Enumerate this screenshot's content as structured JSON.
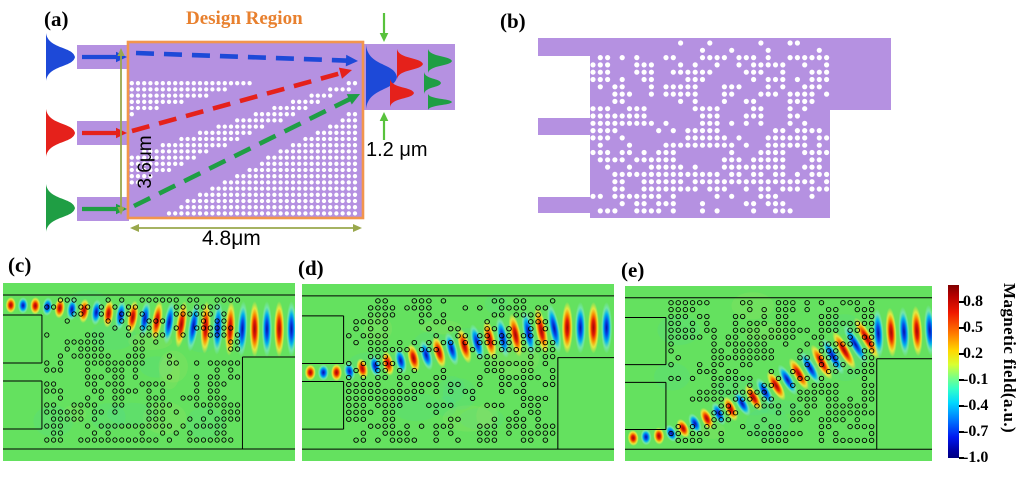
{
  "panels": {
    "a": {
      "label": "(a)",
      "design_region_label": "Design Region",
      "dim_height": "3.6μm",
      "dim_width": "4.8μm",
      "dim_output": "1.2 μm"
    },
    "b": {
      "label": "(b)"
    },
    "c": {
      "label": "(c)"
    },
    "d": {
      "label": "(d)"
    },
    "e": {
      "label": "(e)"
    }
  },
  "colorbar": {
    "title": "Magnetic field(a.u.)",
    "ticks": [
      "0.8",
      "0.5",
      "0.2",
      "-0.1",
      "-0.4",
      "-0.7",
      "-1.0"
    ],
    "range_top": 1.0,
    "range_bottom": -1.0,
    "colormap": "jet"
  },
  "chart_data": {
    "type": "heatmap",
    "colorbar": {
      "label": "Magnetic field(a.u.)",
      "ticks": [
        0.8,
        0.5,
        0.2,
        -0.1,
        -0.4,
        -0.7,
        -1.0
      ],
      "range": [
        -1.0,
        1.0
      ],
      "colormap": "jet"
    },
    "panels": [
      {
        "id": "c",
        "input_port": "top",
        "beam": "straight through top to wide output"
      },
      {
        "id": "d",
        "input_port": "middle",
        "beam": "diagonal up-right to wide output"
      },
      {
        "id": "e",
        "input_port": "bottom",
        "beam": "diagonal up-right to wide output"
      }
    ]
  },
  "field_panels": [
    {
      "id": "field-c",
      "beam_points": [
        [
          3,
          22
        ],
        [
          40,
          23
        ],
        [
          120,
          32
        ],
        [
          200,
          44
        ],
        [
          246,
          46
        ],
        [
          300,
          46
        ]
      ],
      "beam_halfwidths": [
        8,
        9,
        15,
        26,
        28,
        28
      ],
      "seed": 11
    },
    {
      "id": "field-d",
      "beam_points": [
        [
          3,
          89
        ],
        [
          40,
          89
        ],
        [
          110,
          74
        ],
        [
          180,
          56
        ],
        [
          246,
          44
        ],
        [
          300,
          44
        ]
      ],
      "beam_halfwidths": [
        8,
        9,
        15,
        20,
        26,
        26
      ],
      "seed": 29
    },
    {
      "id": "field-e",
      "beam_points": [
        [
          3,
          155
        ],
        [
          40,
          152
        ],
        [
          110,
          122
        ],
        [
          180,
          84
        ],
        [
          246,
          48
        ],
        [
          300,
          45
        ]
      ],
      "beam_halfwidths": [
        8,
        9,
        14,
        19,
        25,
        26
      ],
      "seed": 47
    }
  ],
  "colors": {
    "silicon_purple": "#b591e1",
    "design_border_orange": "#f2954d",
    "design_label_orange": "#e8802e",
    "input_blue": "#1d49d8",
    "input_red": "#e5211b",
    "input_green": "#1f9e44",
    "dim_line_olive": "#99a84c",
    "dim_arrow_green": "#58c23c",
    "field_background_green": "#64e15f",
    "hole_outline": "#000000",
    "structure_line": "#000000"
  }
}
